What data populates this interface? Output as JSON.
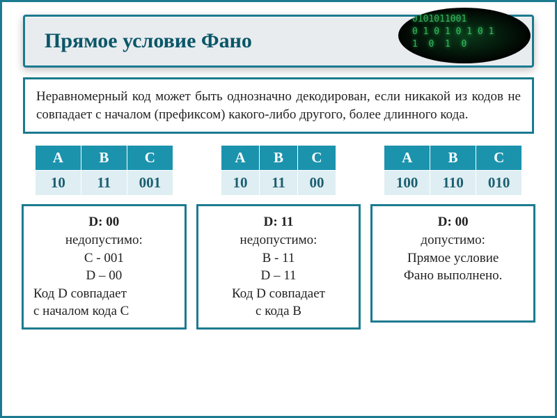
{
  "title": "Прямое условие Фано",
  "description": "Неравномерный код может быть однозначно декодирован, если никакой из кодов не совпадает с началом (префиксом) какого-либо другого, более длинного кода.",
  "colors": {
    "primary": "#1b7a8f",
    "header_bg": "#1b93ad",
    "cell_bg": "#dfeef3",
    "title_bg": "#e8ecef",
    "title_text": "#0a5668"
  },
  "columns": [
    {
      "headers": [
        "А",
        "В",
        "С"
      ],
      "values": [
        "10",
        "11",
        "001"
      ],
      "cell_width": "cellw-3",
      "d_title": "D: 00",
      "verdict": "недопустимо:",
      "line1": "С - 001",
      "line2": "D – 00",
      "explain1": "Код D совпадает",
      "explain2": "с началом кода С"
    },
    {
      "headers": [
        "А",
        "В",
        "С"
      ],
      "values": [
        "10",
        "11",
        "00"
      ],
      "cell_width": "cellw-2",
      "d_title": "D: 11",
      "verdict": "недопустимо:",
      "line1": "B - 11",
      "line2": "D – 11",
      "explain1": "Код D совпадает",
      "explain2": "с кода В"
    },
    {
      "headers": [
        "А",
        "В",
        "С"
      ],
      "values": [
        "100",
        "110",
        "010"
      ],
      "cell_width": "cellw-3",
      "d_title": "D: 00",
      "verdict": "допустимо:",
      "line1": "Прямое условие",
      "line2": "Фано выполнено.",
      "explain1": "",
      "explain2": ""
    }
  ]
}
